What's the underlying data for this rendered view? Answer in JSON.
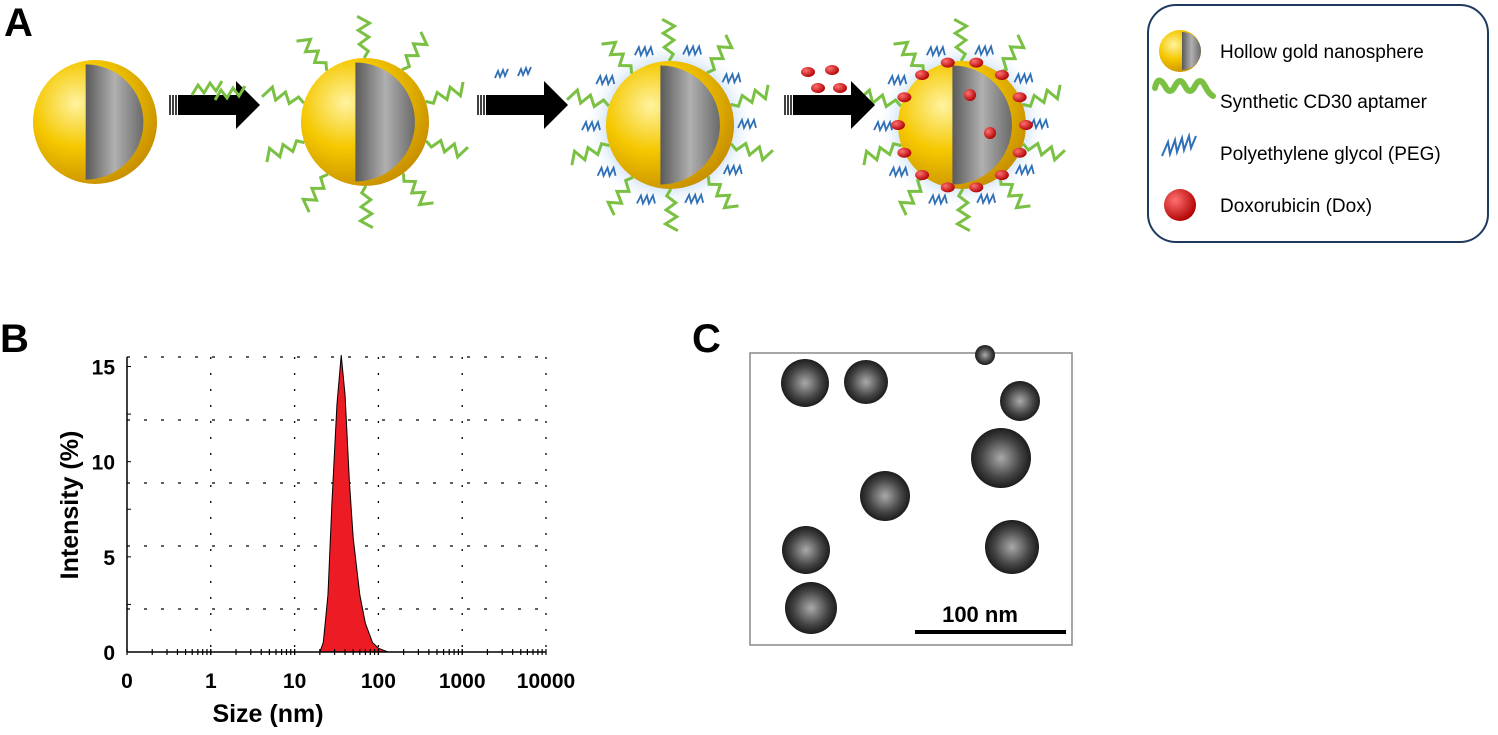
{
  "panels": {
    "a": "A",
    "b": "B",
    "c": "C"
  },
  "legend": {
    "items": [
      {
        "label": "Hollow gold nanosphere",
        "icon": "gold-nanosphere-icon"
      },
      {
        "label": "Synthetic CD30 aptamer",
        "icon": "aptamer-icon"
      },
      {
        "label": "Polyethylene glycol (PEG)",
        "icon": "peg-icon"
      },
      {
        "label": "Doxorubicin (Dox)",
        "icon": "dox-icon"
      }
    ],
    "border_color": "#1f3a5f"
  },
  "colors": {
    "gold": "#f2c200",
    "shell": "#8a8a8a",
    "aptamer": "#7ac143",
    "peg": "#2f6fb5",
    "dox": "#e02020",
    "fill": "#ed1c24"
  },
  "tem": {
    "scale_bar": "100 nm"
  },
  "chart_data": {
    "type": "area",
    "xlabel": "Size (nm)",
    "ylabel": "Intensity (%)",
    "xscale": "log",
    "xlim": [
      0.1,
      10000
    ],
    "ylim": [
      0,
      15.5
    ],
    "x_tick_labels": [
      "0",
      "1",
      "10",
      "100",
      "1000",
      "10000"
    ],
    "y_tick_labels": [
      "0",
      "5",
      "10",
      "15"
    ],
    "grid": true,
    "x": [
      20,
      22,
      25,
      28,
      32,
      36,
      40,
      45,
      50,
      60,
      70,
      85,
      100,
      130
    ],
    "y": [
      0,
      0.5,
      3,
      8,
      13,
      15.6,
      13.5,
      9,
      6,
      3,
      1.5,
      0.5,
      0.2,
      0
    ]
  }
}
